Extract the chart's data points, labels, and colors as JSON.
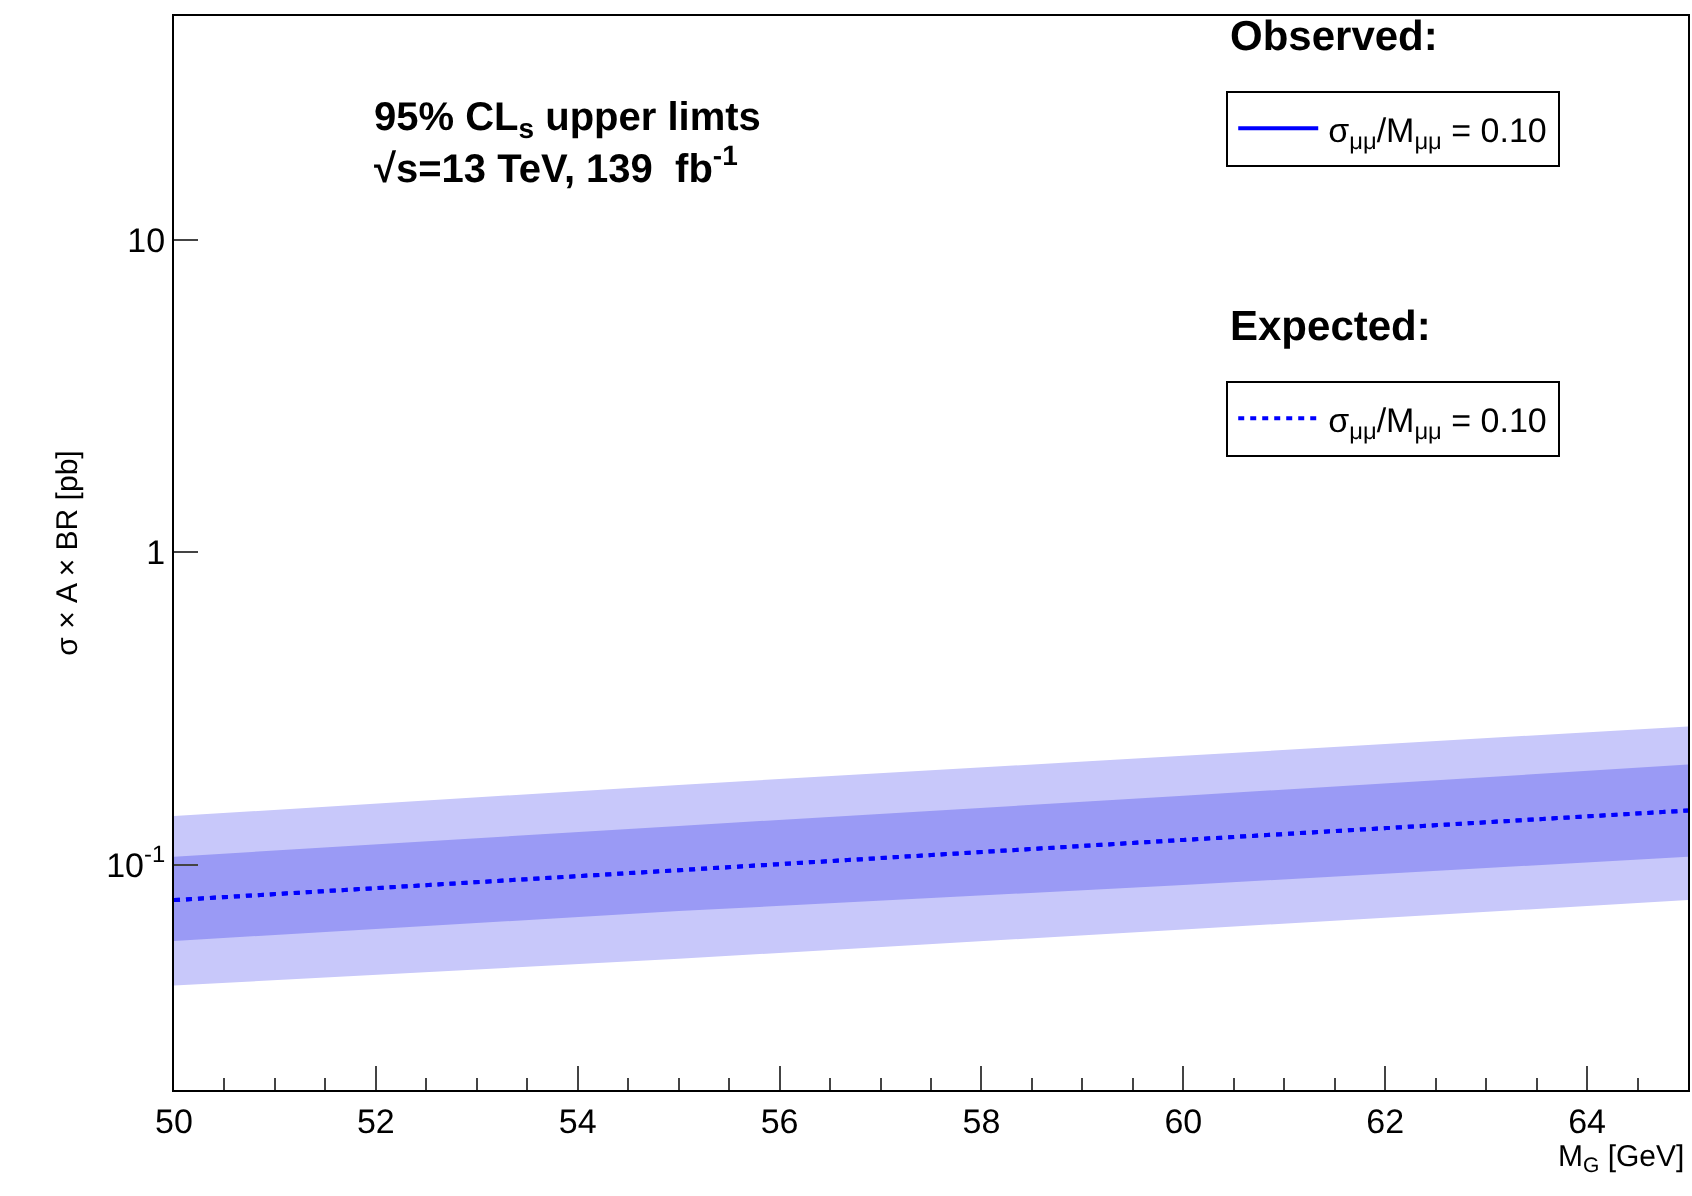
{
  "chart_data": {
    "type": "line",
    "title": "95% CL$_{s}$ upper limts",
    "subtitle": "√s=13 TeV, 139  fb$^{-1}$",
    "xlabel": "M$_{G}$ [GeV]",
    "ylabel": "σ × A × BR [pb]",
    "annotations": [
      "Observed:",
      "Expected:"
    ],
    "x": [
      50,
      55,
      60,
      65
    ],
    "series": [
      {
        "name": "σ$_{μμ}$/M$_{μμ}$ = 0.10",
        "color": "#0000ff",
        "values": [
          null,
          null,
          null,
          null
        ],
        "line_style": "solid"
      },
      {
        "name": "σ$_{μμ}$/M$_{μμ}$ = 0.10",
        "color": "#0000ff",
        "values": [
          0.077,
          0.096,
          0.12,
          0.149
        ],
        "lower": [
          0.057,
          0.071,
          0.086,
          0.106
        ],
        "upper": [
          0.106,
          0.133,
          0.166,
          0.209
        ],
        "line_style": "dotted"
      },
      {
        "color": "#0000ff",
        "values": [
          0.077,
          0.096,
          0.12,
          0.149
        ],
        "lower": [
          0.041,
          0.05,
          0.062,
          0.077
        ],
        "upper": [
          0.143,
          0.18,
          0.223,
          0.277
        ],
        "line_style": "dotted"
      }
    ],
    "log": "y",
    "xlim": [
      50,
      65
    ],
    "ylim": [
      0.019,
      52
    ],
    "xticks": [
      50,
      52,
      54,
      56,
      58,
      60,
      62,
      64
    ],
    "yticks": [
      {
        "value": 0.1,
        "label": "10$^{-1}$"
      },
      1,
      10
    ],
    "grid": false,
    "legend": "top right"
  }
}
